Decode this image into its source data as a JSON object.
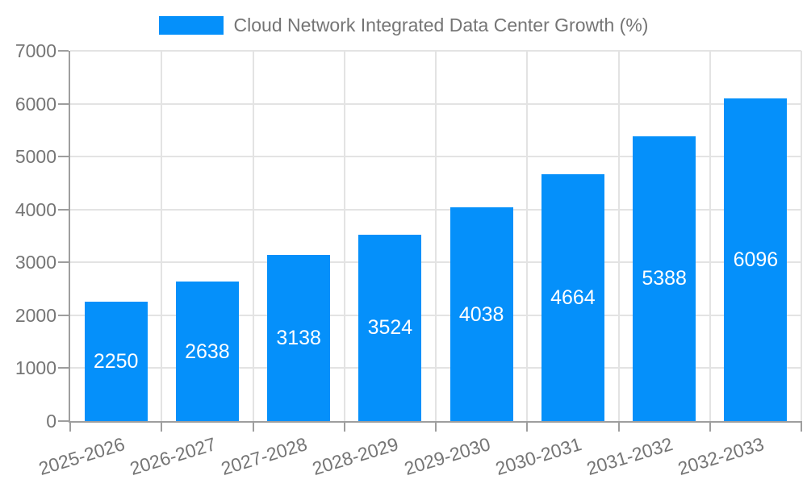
{
  "chart_data": {
    "type": "bar",
    "legend_label": "Cloud Network Integrated Data Center Growth (%)",
    "legend_position": "top",
    "categories": [
      "2025-2026",
      "2026-2027",
      "2027-2028",
      "2028-2029",
      "2029-2030",
      "2030-2031",
      "2031-2032",
      "2032-2033"
    ],
    "values": [
      2250,
      2638,
      3138,
      3524,
      4038,
      4664,
      5388,
      6096
    ],
    "xlabel": "",
    "ylabel": "",
    "ylim": [
      0,
      7000
    ],
    "ytick_step": 1000,
    "yticks": [
      0,
      1000,
      2000,
      3000,
      4000,
      5000,
      6000,
      7000
    ],
    "grid": true,
    "value_labels": "centered-inside-bars",
    "x_label_rotation_deg": -17,
    "colors": {
      "bar": "#0590FA",
      "bar_value_text": "#FFFFFF",
      "axis_text": "#757575",
      "legend_text": "#757575",
      "gridline": "#E3E3E3",
      "axis_line": "#9E9E9E",
      "background": "#FFFFFF"
    }
  }
}
